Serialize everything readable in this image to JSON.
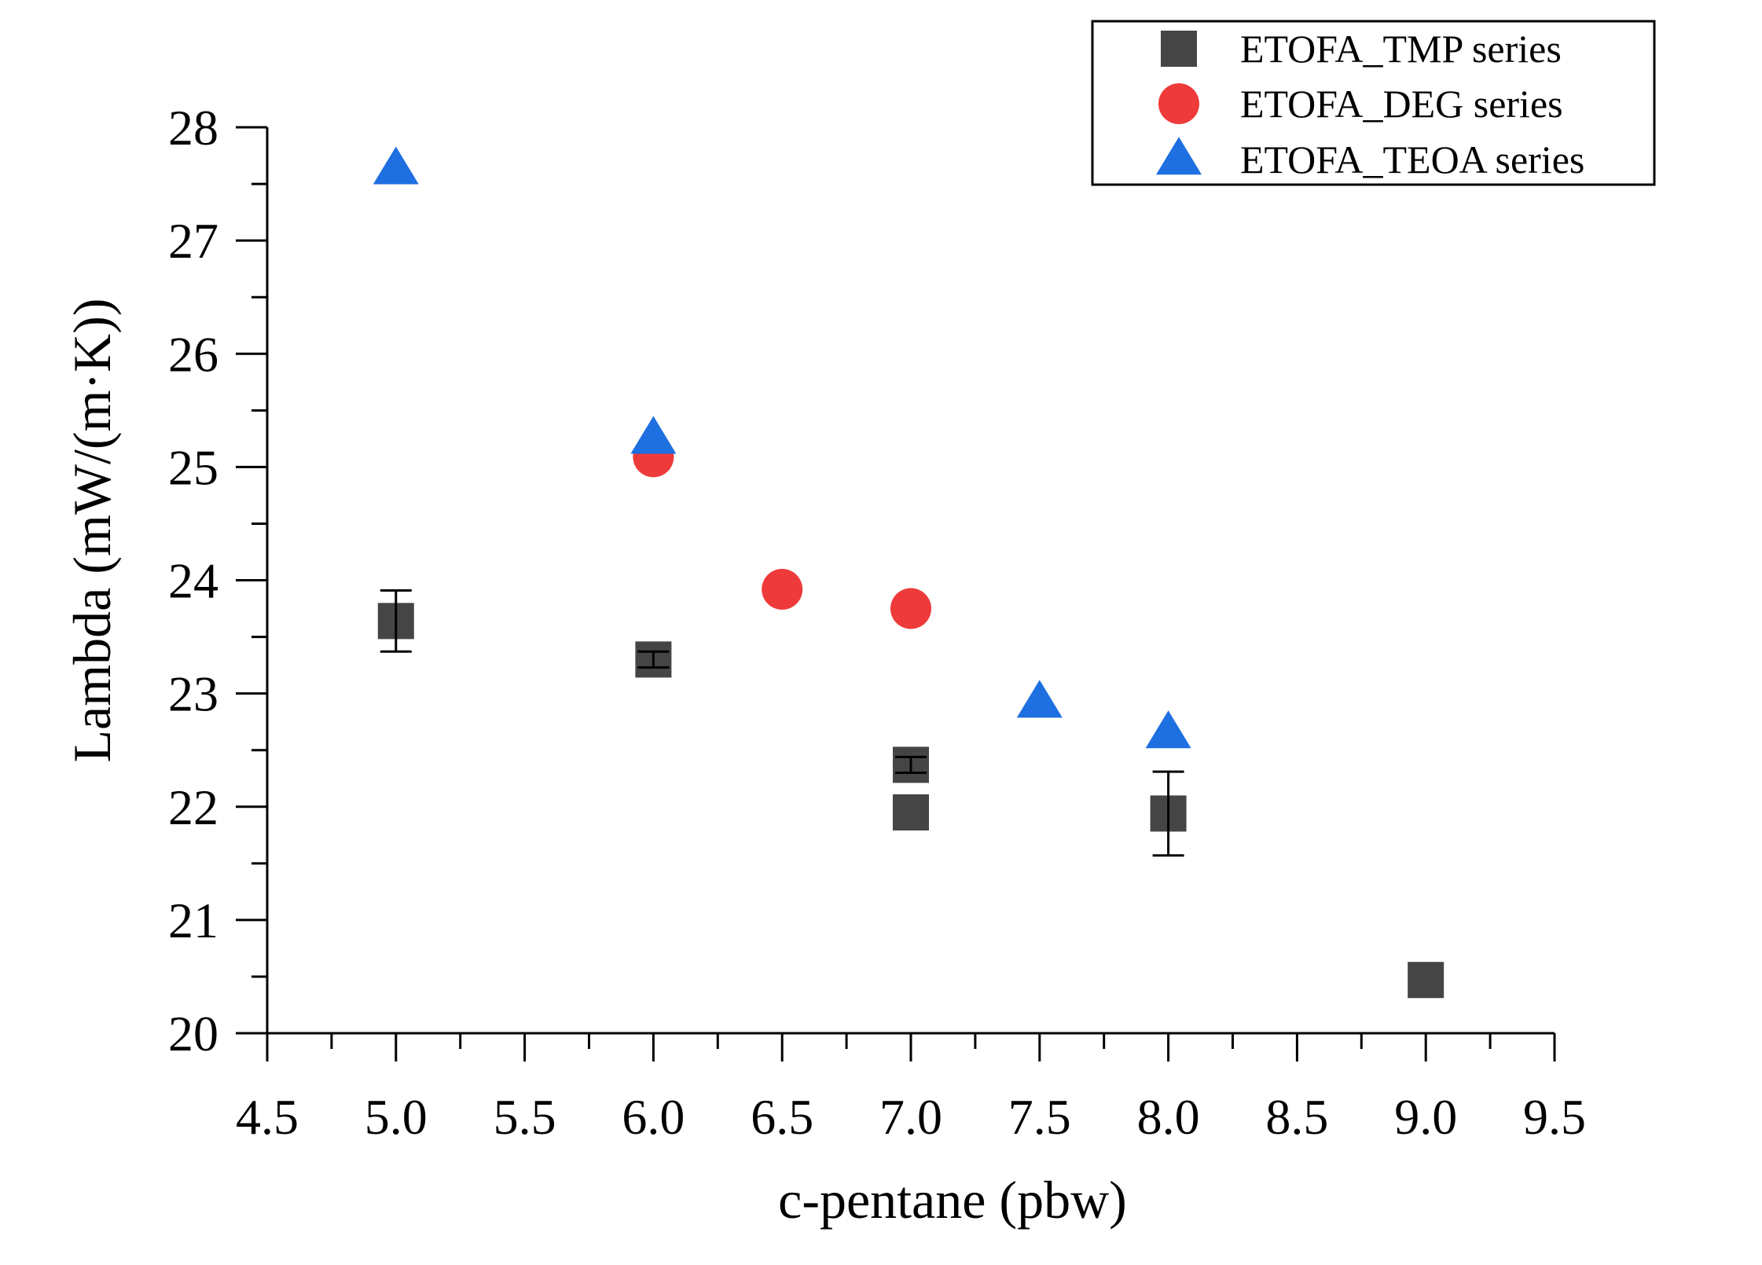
{
  "chart_data": {
    "type": "scatter",
    "title": "",
    "xlabel": "c-pentane (pbw)",
    "ylabel": "Lambda (mW/(m·K))",
    "xlim": [
      4.5,
      9.5
    ],
    "ylim": [
      20,
      28
    ],
    "xticks": [
      "4.5",
      "5.0",
      "5.5",
      "6.0",
      "6.5",
      "7.0",
      "7.5",
      "8.0",
      "8.5",
      "9.0",
      "9.5"
    ],
    "yticks": [
      "20",
      "21",
      "22",
      "23",
      "24",
      "25",
      "26",
      "27",
      "28"
    ],
    "grid": false,
    "legend_position": "top-right",
    "series": [
      {
        "name": "ETOFA_TMP series",
        "marker": "square",
        "color": "#454545",
        "points": [
          {
            "x": 5.0,
            "y": 23.64,
            "err": 0.27
          },
          {
            "x": 6.0,
            "y": 23.3,
            "err": 0.07
          },
          {
            "x": 7.0,
            "y": 22.37,
            "err": 0.07
          },
          {
            "x": 7.0,
            "y": 21.95,
            "err": 0
          },
          {
            "x": 8.0,
            "y": 21.94,
            "err": 0.37
          },
          {
            "x": 9.0,
            "y": 20.47,
            "err": 0
          }
        ]
      },
      {
        "name": "ETOFA_DEG series",
        "marker": "circle",
        "color": "#ee3a3a",
        "points": [
          {
            "x": 6.0,
            "y": 25.09
          },
          {
            "x": 6.5,
            "y": 23.92
          },
          {
            "x": 7.0,
            "y": 23.75
          }
        ]
      },
      {
        "name": "ETOFA_TEOA series",
        "marker": "triangle",
        "color": "#1e6fe0",
        "points": [
          {
            "x": 5.0,
            "y": 27.63
          },
          {
            "x": 6.0,
            "y": 25.25
          },
          {
            "x": 7.5,
            "y": 22.92
          },
          {
            "x": 8.0,
            "y": 22.65
          }
        ]
      }
    ]
  }
}
